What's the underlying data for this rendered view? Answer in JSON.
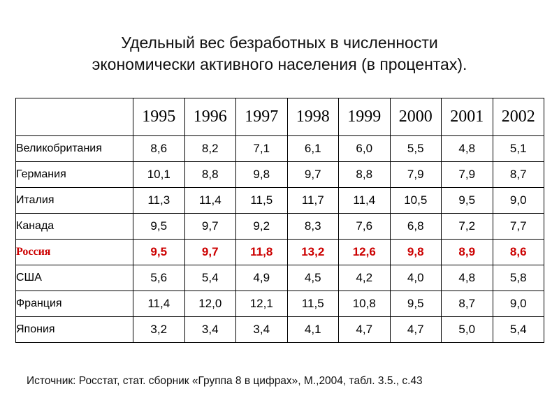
{
  "title": {
    "line1": "Удельный вес безработных в численности",
    "line2": "экономически активного населения (в процентах)."
  },
  "table": {
    "corner": "",
    "years": [
      "1995",
      "1996",
      "1997",
      "1998",
      "1999",
      "2000",
      "2001",
      "2002"
    ],
    "rows": [
      {
        "country": "Великобритания",
        "values": [
          "8,6",
          "8,2",
          "7,1",
          "6,1",
          "6,0",
          "5,5",
          "4,8",
          "5,1"
        ],
        "highlight": false
      },
      {
        "country": "Германия",
        "values": [
          "10,1",
          "8,8",
          "9,8",
          "9,7",
          "8,8",
          "7,9",
          "7,9",
          "8,7"
        ],
        "highlight": false
      },
      {
        "country": "Италия",
        "values": [
          "11,3",
          "11,4",
          "11,5",
          "11,7",
          "11,4",
          "10,5",
          "9,5",
          "9,0"
        ],
        "highlight": false
      },
      {
        "country": "Канада",
        "values": [
          "9,5",
          "9,7",
          "9,2",
          "8,3",
          "7,6",
          "6,8",
          "7,2",
          "7,7"
        ],
        "highlight": false
      },
      {
        "country": "Россия",
        "values": [
          "9,5",
          "9,7",
          "11,8",
          "13,2",
          "12,6",
          "9,8",
          "8,9",
          "8,6"
        ],
        "highlight": true
      },
      {
        "country": "США",
        "values": [
          "5,6",
          "5,4",
          "4,9",
          "4,5",
          "4,2",
          "4,0",
          "4,8",
          "5,8"
        ],
        "highlight": false
      },
      {
        "country": "Франция",
        "values": [
          "11,4",
          "12,0",
          "12,1",
          "11,5",
          "10,8",
          "9,5",
          "8,7",
          "9,0"
        ],
        "highlight": false
      },
      {
        "country": "Япония",
        "values": [
          "3,2",
          "3,4",
          "3,4",
          "4,1",
          "4,7",
          "4,7",
          "5,0",
          "5,4"
        ],
        "highlight": false
      }
    ]
  },
  "source": "Источник: Росстат, стат. сборник «Группа 8 в цифрах», М.,2004, табл. 3.5., с.43",
  "colors": {
    "text": "#000000",
    "highlight": "#cc0000",
    "border": "#000000"
  }
}
